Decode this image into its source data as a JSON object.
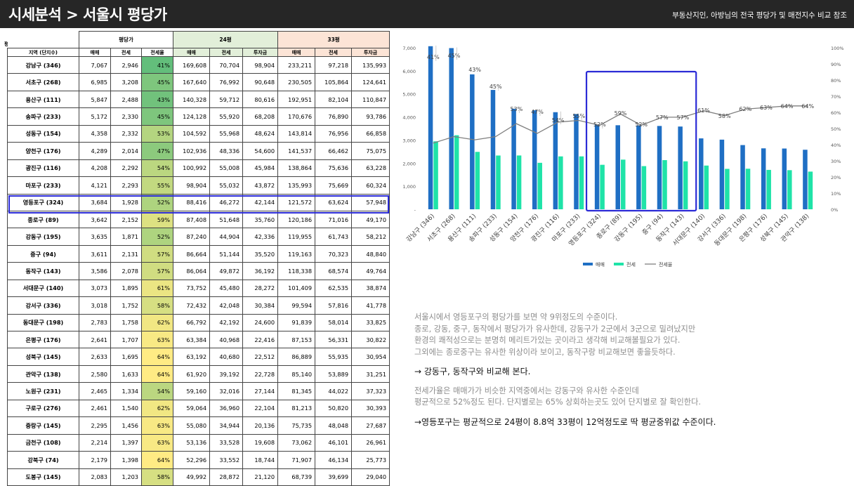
{
  "header": {
    "title": "시세분석 > 서울시 평당가",
    "subtitle": "부동산지인, 아방님의 전국 평당가 및 매전지수 비교 참조"
  },
  "table": {
    "unit": "평기",
    "groups": [
      "평당가",
      "24평",
      "33평"
    ],
    "columns": [
      "지역 (단지수)",
      "매매",
      "전세",
      "전세율",
      "매매",
      "전세",
      "투자금",
      "매매",
      "전세",
      "투자금"
    ],
    "rows": [
      [
        "강남구 (346)",
        "7,067",
        "2,946",
        "41%",
        "169,608",
        "70,704",
        "98,904",
        "233,211",
        "97,218",
        "135,993"
      ],
      [
        "서초구 (268)",
        "6,985",
        "3,208",
        "45%",
        "167,640",
        "76,992",
        "90,648",
        "230,505",
        "105,864",
        "124,641"
      ],
      [
        "용산구 (111)",
        "5,847",
        "2,488",
        "43%",
        "140,328",
        "59,712",
        "80,616",
        "192,951",
        "82,104",
        "110,847"
      ],
      [
        "송파구 (233)",
        "5,172",
        "2,330",
        "45%",
        "124,128",
        "55,920",
        "68,208",
        "170,676",
        "76,890",
        "93,786"
      ],
      [
        "성동구 (154)",
        "4,358",
        "2,332",
        "53%",
        "104,592",
        "55,968",
        "48,624",
        "143,814",
        "76,956",
        "66,858"
      ],
      [
        "양천구 (176)",
        "4,289",
        "2,014",
        "47%",
        "102,936",
        "48,336",
        "54,600",
        "141,537",
        "66,462",
        "75,075"
      ],
      [
        "광진구 (116)",
        "4,208",
        "2,292",
        "54%",
        "100,992",
        "55,008",
        "45,984",
        "138,864",
        "75,636",
        "63,228"
      ],
      [
        "마포구 (233)",
        "4,121",
        "2,293",
        "55%",
        "98,904",
        "55,032",
        "43,872",
        "135,993",
        "75,669",
        "60,324"
      ],
      [
        "영등포구 (324)",
        "3,684",
        "1,928",
        "52%",
        "88,416",
        "46,272",
        "42,144",
        "121,572",
        "63,624",
        "57,948"
      ],
      [
        "종로구 (89)",
        "3,642",
        "2,152",
        "59%",
        "87,408",
        "51,648",
        "35,760",
        "120,186",
        "71,016",
        "49,170"
      ],
      [
        "강동구 (195)",
        "3,635",
        "1,871",
        "52%",
        "87,240",
        "44,904",
        "42,336",
        "119,955",
        "61,743",
        "58,212"
      ],
      [
        "중구 (94)",
        "3,611",
        "2,131",
        "57%",
        "86,664",
        "51,144",
        "35,520",
        "119,163",
        "70,323",
        "48,840"
      ],
      [
        "동작구 (143)",
        "3,586",
        "2,078",
        "57%",
        "86,064",
        "49,872",
        "36,192",
        "118,338",
        "68,574",
        "49,764"
      ],
      [
        "서대문구 (140)",
        "3,073",
        "1,895",
        "61%",
        "73,752",
        "45,480",
        "28,272",
        "101,409",
        "62,535",
        "38,874"
      ],
      [
        "강서구 (336)",
        "3,018",
        "1,752",
        "58%",
        "72,432",
        "42,048",
        "30,384",
        "99,594",
        "57,816",
        "41,778"
      ],
      [
        "동대문구 (198)",
        "2,783",
        "1,758",
        "62%",
        "66,792",
        "42,192",
        "24,600",
        "91,839",
        "58,014",
        "33,825"
      ],
      [
        "은평구 (176)",
        "2,641",
        "1,707",
        "63%",
        "63,384",
        "40,968",
        "22,416",
        "87,153",
        "56,331",
        "30,822"
      ],
      [
        "성북구 (145)",
        "2,633",
        "1,695",
        "64%",
        "63,192",
        "40,680",
        "22,512",
        "86,889",
        "55,935",
        "30,954"
      ],
      [
        "관악구 (138)",
        "2,580",
        "1,633",
        "64%",
        "61,920",
        "39,192",
        "22,728",
        "85,140",
        "53,889",
        "31,251"
      ],
      [
        "노원구 (231)",
        "2,465",
        "1,334",
        "54%",
        "59,160",
        "32,016",
        "27,144",
        "81,345",
        "44,022",
        "37,323"
      ],
      [
        "구로구 (276)",
        "2,461",
        "1,540",
        "62%",
        "59,064",
        "36,960",
        "22,104",
        "81,213",
        "50,820",
        "30,393"
      ],
      [
        "중랑구 (145)",
        "2,295",
        "1,456",
        "63%",
        "55,080",
        "34,944",
        "20,136",
        "75,735",
        "48,048",
        "27,687"
      ],
      [
        "금천구 (108)",
        "2,214",
        "1,397",
        "63%",
        "53,136",
        "33,528",
        "19,608",
        "73,062",
        "46,101",
        "26,961"
      ],
      [
        "강북구 (74)",
        "2,179",
        "1,398",
        "64%",
        "52,296",
        "33,552",
        "18,744",
        "71,907",
        "46,134",
        "25,773"
      ],
      [
        "도봉구 (145)",
        "2,083",
        "1,203",
        "58%",
        "49,992",
        "28,872",
        "21,120",
        "68,739",
        "39,699",
        "29,040"
      ]
    ]
  },
  "colors": {
    "sale": "#1f6fc4",
    "jeonse": "#1fe3a8",
    "rate_line": "#7f7f7f",
    "highlight": "#2b2bd6",
    "rate_high": "#63be7b",
    "rate_mid": "#ffeb84"
  },
  "chart_data": {
    "type": "bar",
    "categories": [
      "강남구 (346)",
      "서초구 (268)",
      "용산구 (111)",
      "송파구 (233)",
      "성동구 (154)",
      "양천구 (176)",
      "광진구 (116)",
      "마포구 (233)",
      "영등포구 (324)",
      "종로구 (89)",
      "강동구 (195)",
      "중구 (94)",
      "동작구 (143)",
      "서대문구 (140)",
      "강서구 (336)",
      "동대문구 (198)",
      "은평구 (176)",
      "성북구 (145)",
      "관악구 (138)"
    ],
    "series": [
      {
        "name": "매매",
        "type": "bar",
        "axis": "left",
        "values": [
          7067,
          6985,
          5847,
          5172,
          4358,
          4289,
          4208,
          4121,
          3684,
          3642,
          3635,
          3611,
          3586,
          3073,
          3018,
          2783,
          2641,
          2633,
          2580
        ]
      },
      {
        "name": "전세",
        "type": "bar",
        "axis": "left",
        "values": [
          2946,
          3208,
          2488,
          2330,
          2332,
          2014,
          2292,
          2293,
          1928,
          2152,
          1871,
          2131,
          2078,
          1895,
          1752,
          1758,
          1707,
          1695,
          1633
        ]
      },
      {
        "name": "전세율",
        "type": "line",
        "axis": "right",
        "values": [
          41,
          45,
          43,
          45,
          53,
          47,
          54,
          55,
          52,
          59,
          52,
          57,
          57,
          61,
          58,
          62,
          63,
          64,
          64
        ]
      }
    ],
    "data_labels": [
      "41%",
      "45%",
      "43%",
      "45%",
      "53%",
      "47%",
      "54%",
      "55%",
      "52%",
      "59%",
      "52%",
      "57%",
      "57%",
      "61%",
      "58%",
      "62%",
      "63%",
      "64%",
      "64%"
    ],
    "y_left": {
      "range": [
        0,
        7000
      ],
      "ticks": [
        "-",
        "1,000",
        "2,000",
        "3,000",
        "4,000",
        "5,000",
        "6,000",
        "7,000"
      ]
    },
    "y_right": {
      "range": [
        0,
        100
      ],
      "ticks": [
        "0%",
        "10%",
        "20%",
        "30%",
        "40%",
        "50%",
        "60%",
        "70%",
        "80%",
        "90%",
        "100%"
      ]
    },
    "legend": [
      "매매",
      "전세",
      "전세율"
    ],
    "legend_position": "bottom",
    "grid": false,
    "highlight_range": [
      8,
      12
    ]
  },
  "text": {
    "p1": [
      "서울시에서 영등포구의 평당가를 보면 약 9위정도의 수준이다.",
      "종로, 강동, 중구, 동작에서 평당가가 유사한데, 강동구가 2군에서 3군으로 밀려났지만",
      "환경의 쾌적성으로는 분명히 메리트가있는 곳이라고 생각해 비교해볼필요가 있다.",
      "그외에는 종로중구는 유사한 위상이라 보이고, 동작구랑 비교해보면 좋을듯하다."
    ],
    "p2": "→ 강동구, 동작구와 비교해 본다.",
    "p3": [
      "전세가율은 매매가가 비슷한 지역중에서는 강동구와 유사한 수준인데",
      "평균적으로 52%정도 된다. 단지별로는 65% 상회하는곳도 있어 단지별로 잘 확인한다."
    ],
    "p4": "→영등포구는 평균적으로 24평이 8.8억 33평이 12억정도로 딱 평균중위값 수준이다."
  }
}
